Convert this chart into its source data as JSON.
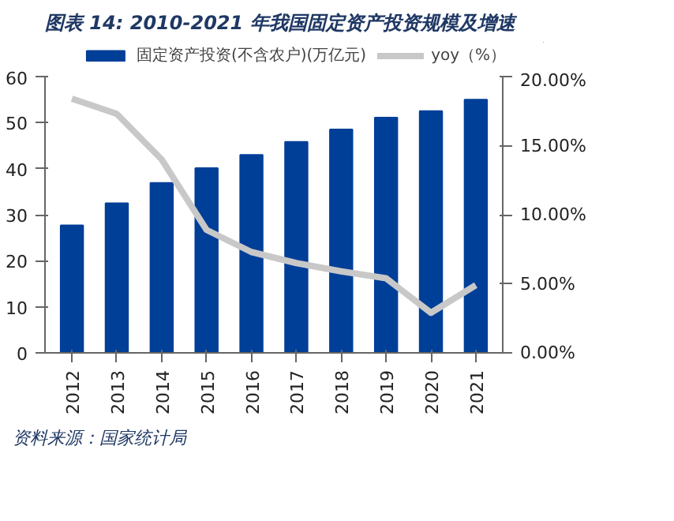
{
  "chart_data": {
    "type": "bar",
    "title": "图表 14: 2010-2021 年我国固定资产投资规模及增速",
    "categories": [
      "2012",
      "2013",
      "2014",
      "2015",
      "2016",
      "2017",
      "2018",
      "2019",
      "2020",
      "2021"
    ],
    "series": [
      {
        "name": "固定资产投资(不含农户)(万亿元)",
        "color": "#003f98",
        "values": [
          27.7,
          32.5,
          36.9,
          40.1,
          43.0,
          45.8,
          48.5,
          51.1,
          52.5,
          55.0
        ]
      },
      {
        "name": "yoy（%）",
        "type": "line",
        "axis": "y2",
        "color": "#c8c8c8",
        "values": [
          18.4,
          17.3,
          14.0,
          8.9,
          7.3,
          6.5,
          5.9,
          5.4,
          2.9,
          4.9
        ]
      }
    ],
    "ylim": [
      0,
      60
    ],
    "yticks": [
      0,
      10,
      20,
      30,
      40,
      50,
      60
    ],
    "y2lim": [
      0,
      20
    ],
    "y2ticks": [
      {
        "value": 0,
        "label": "0.00%"
      },
      {
        "value": 5,
        "label": "5.00%"
      },
      {
        "value": 10,
        "label": "10.00%"
      },
      {
        "value": 15,
        "label": "15.00%"
      },
      {
        "value": 20,
        "label": "20.00%"
      }
    ],
    "legend": "top",
    "grid": false,
    "annotations": [
      "资料来源：国家统计局"
    ]
  }
}
